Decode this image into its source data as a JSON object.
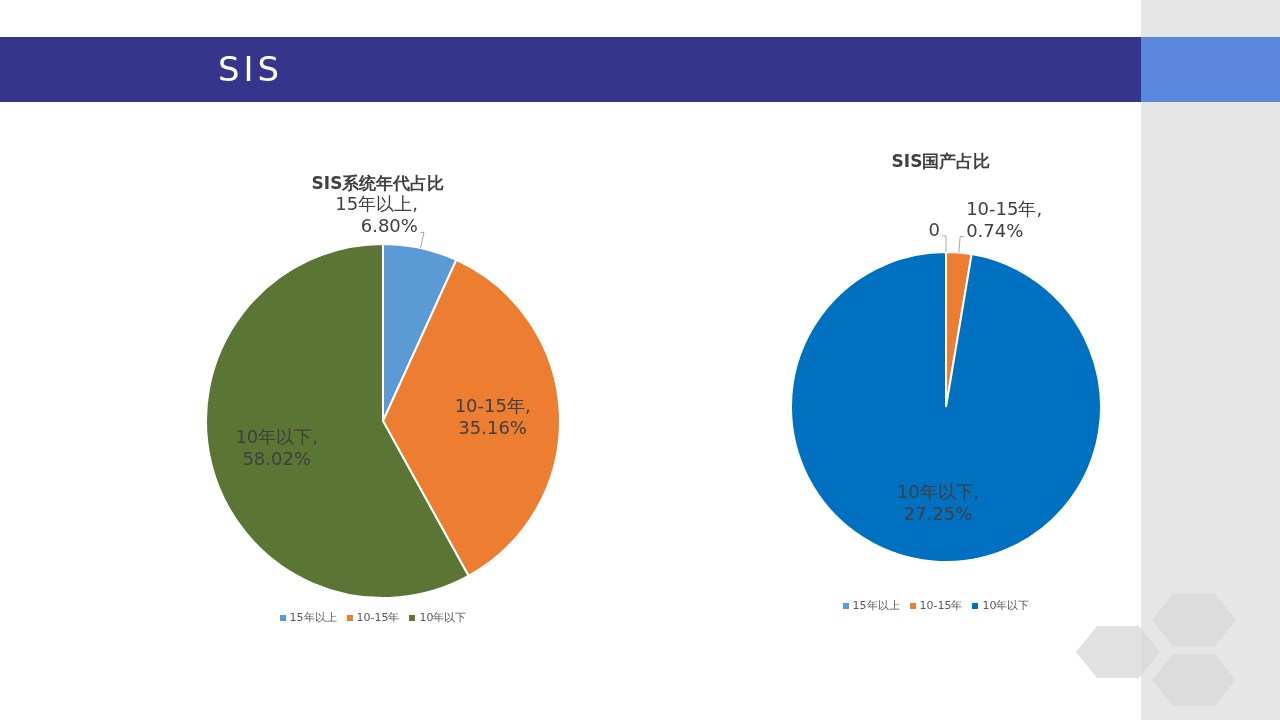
{
  "chart_data": [
    {
      "type": "other",
      "title": "SIS"
    },
    {
      "type": "pie",
      "title": "SIS系统年代占比",
      "categories": [
        "15年以上",
        "10-15年",
        "10年以下"
      ],
      "values": [
        6.8,
        35.16,
        58.02
      ],
      "colors": [
        "#5b9bd5",
        "#ed7d31",
        "#5b7535"
      ],
      "value_labels": [
        "15年以上, 6.80%",
        "10-15年, 35.16%",
        "10年以下, 58.02%"
      ],
      "legend": "bottom"
    },
    {
      "type": "pie",
      "title": "SIS国产占比",
      "categories": [
        "15年以上",
        "10-15年",
        "10年以下"
      ],
      "values": [
        0,
        0.74,
        27.25
      ],
      "colors": [
        "#5b9bd5",
        "#ed7d31",
        "#0070c0"
      ],
      "value_labels": [
        "0",
        "10-15年, 0.74%",
        "10年以下, 27.25%"
      ],
      "legend": "bottom"
    }
  ]
}
